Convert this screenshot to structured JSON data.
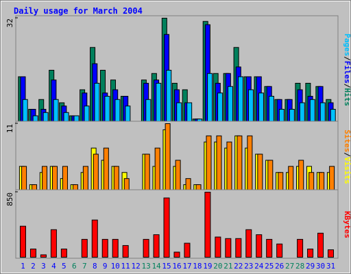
{
  "chart_data": {
    "type": "bar",
    "title": "Daily usage for March 2004",
    "categories": [
      "1",
      "2",
      "3",
      "4",
      "5",
      "6",
      "7",
      "8",
      "9",
      "10",
      "11",
      "12",
      "13",
      "14",
      "15",
      "16",
      "17",
      "18",
      "19",
      "20",
      "21",
      "22",
      "23",
      "24",
      "25",
      "26",
      "27",
      "28",
      "29",
      "30",
      "31"
    ],
    "label_colors": [
      "#0000ff",
      "#0000ff",
      "#0000ff",
      "#0000ff",
      "#0000ff",
      "#00805c",
      "#00805c",
      "#0000ff",
      "#0000ff",
      "#0000ff",
      "#0000ff",
      "#0000ff",
      "#00805c",
      "#00805c",
      "#0000ff",
      "#0000ff",
      "#0000ff",
      "#0000ff",
      "#0000ff",
      "#00805c",
      "#00805c",
      "#0000ff",
      "#0000ff",
      "#0000ff",
      "#0000ff",
      "#0000ff",
      "#00805c",
      "#00805c",
      "#0000ff",
      "#0000ff",
      "#0000ff"
    ],
    "legend_separator": "/",
    "panels": [
      {
        "ylim": [
          0,
          32
        ],
        "yticks": [
          32
        ],
        "series": [
          {
            "name": "Hits",
            "color": "#00805c",
            "values": [
              14,
              4,
              7,
              16,
              6,
              2,
              10,
              23,
              16,
              13,
              8,
              0,
              13,
              15,
              32,
              12,
              10,
              1,
              31,
              15,
              15,
              23,
              14,
              14,
              11,
              7,
              7,
              12,
              12,
              11,
              7
            ]
          },
          {
            "name": "Files",
            "color": "#0000ff",
            "values": [
              14,
              4,
              4,
              13,
              5,
              2,
              9,
              18,
              9,
              10,
              8,
              0,
              12,
              13,
              27,
              10,
              6,
              1,
              30,
              12,
              15,
              17,
              14,
              14,
              11,
              7,
              7,
              10,
              8,
              11,
              6
            ]
          },
          {
            "name": "Pages",
            "color": "#00c0ff",
            "values": [
              7,
              2,
              3,
              7,
              3,
              2,
              5,
              12,
              8,
              7,
              5,
              0,
              7,
              12,
              16,
              6,
              6,
              1,
              15,
              9,
              11,
              14,
              10,
              9,
              8,
              4,
              4,
              6,
              7,
              6,
              4
            ]
          }
        ]
      },
      {
        "ylim": [
          0,
          11
        ],
        "yticks": [
          11
        ],
        "series": [
          {
            "name": "Visits",
            "color": "#ffff00",
            "values": [
              4,
              1,
              3,
              4,
              2,
              1,
              3,
              7,
              5,
              4,
              3,
              0,
              6,
              4,
              10,
              4,
              1,
              1,
              8,
              8,
              7,
              9,
              7,
              6,
              5,
              3,
              3,
              4,
              4,
              3,
              3
            ]
          },
          {
            "name": "Sites",
            "color": "#ff8000",
            "values": [
              4,
              1,
              4,
              4,
              4,
              1,
              4,
              6,
              7,
              4,
              2,
              0,
              6,
              7,
              11,
              5,
              2,
              1,
              9,
              9,
              8,
              9,
              9,
              6,
              5,
              3,
              4,
              5,
              3,
              3,
              4
            ]
          }
        ]
      },
      {
        "ylim": [
          0,
          850
        ],
        "yticks": [
          850
        ],
        "series": [
          {
            "name": "KBytes",
            "color": "#ff0000",
            "values": [
              410,
              115,
              40,
              365,
              115,
              5,
              240,
              490,
              240,
              240,
              160,
              0,
              240,
              300,
              775,
              75,
              190,
              0,
              850,
              270,
              250,
              250,
              365,
              300,
              240,
              180,
              5,
              240,
              115,
              320,
              105
            ]
          }
        ]
      }
    ]
  }
}
